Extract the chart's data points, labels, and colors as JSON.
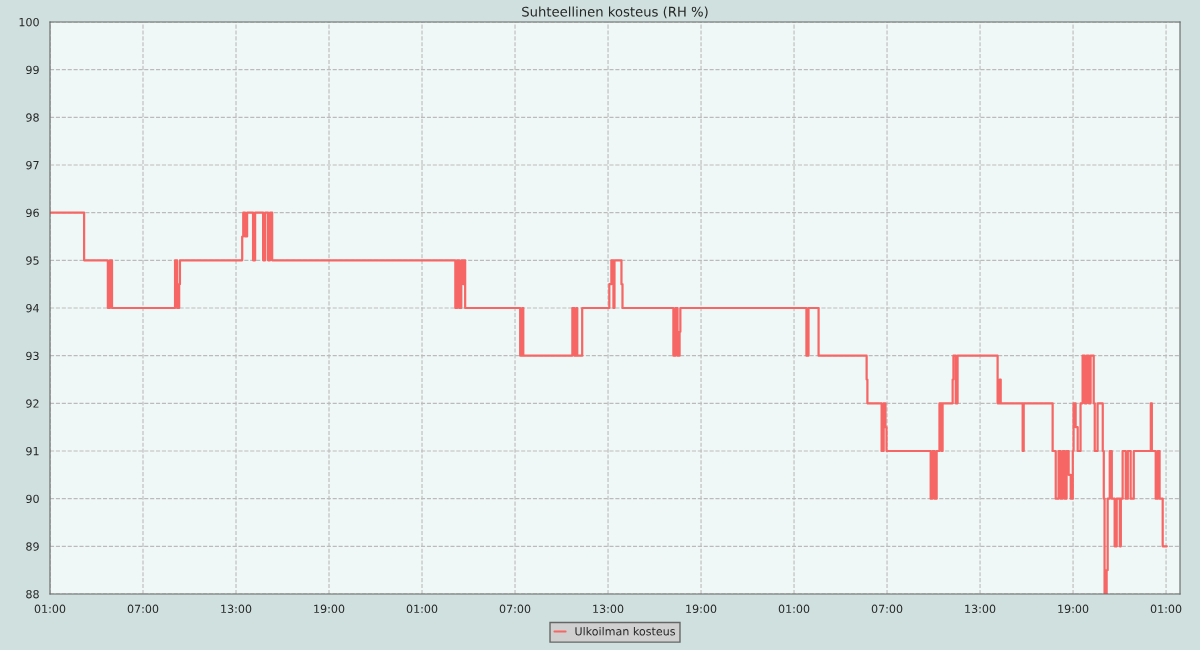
{
  "chart_data": {
    "type": "step",
    "title": "Suhteellinen kosteus (RH %)",
    "xlim": [
      "2000-01-01T01:00",
      "2000-01-04T01:54"
    ],
    "ylim": [
      88,
      100
    ],
    "yticks": [
      88,
      89,
      90,
      91,
      92,
      93,
      94,
      95,
      96,
      97,
      98,
      99,
      100
    ],
    "xticks": [
      {
        "value": "2000-01-01T01:00",
        "label": "01:00"
      },
      {
        "value": "2000-01-01T07:00",
        "label": "07:00"
      },
      {
        "value": "2000-01-01T13:00",
        "label": "13:00"
      },
      {
        "value": "2000-01-01T19:00",
        "label": "19:00"
      },
      {
        "value": "2000-01-02T01:00",
        "label": "01:00"
      },
      {
        "value": "2000-01-02T07:00",
        "label": "07:00"
      },
      {
        "value": "2000-01-02T13:00",
        "label": "13:00"
      },
      {
        "value": "2000-01-02T19:00",
        "label": "19:00"
      },
      {
        "value": "2000-01-03T01:00",
        "label": "01:00"
      },
      {
        "value": "2000-01-03T07:00",
        "label": "07:00"
      },
      {
        "value": "2000-01-03T13:00",
        "label": "13:00"
      },
      {
        "value": "2000-01-03T19:00",
        "label": "19:00"
      },
      {
        "value": "2000-01-04T01:00",
        "label": "01:00"
      }
    ],
    "grid": true,
    "legend": "bottom",
    "line_style": "solid",
    "marker": "none",
    "series": [
      {
        "name": "Ulkoilman kosteus",
        "color": "#f56664",
        "x": [
          "2000-01-01T01:00",
          "2000-01-01T03:12",
          "2000-01-01T04:44",
          "2000-01-01T04:52",
          "2000-01-01T05:00",
          "2000-01-01T05:08",
          "2000-01-01T09:04",
          "2000-01-01T09:12",
          "2000-01-01T09:20",
          "2000-01-01T09:23",
          "2000-01-01T13:24",
          "2000-01-01T13:28",
          "2000-01-01T13:35",
          "2000-01-01T13:43",
          "2000-01-01T14:06",
          "2000-01-01T14:14",
          "2000-01-01T14:45",
          "2000-01-01T14:53",
          "2000-01-01T15:04",
          "2000-01-01T15:12",
          "2000-01-01T15:20",
          "2000-01-02T03:09",
          "2000-01-02T03:16",
          "2000-01-02T03:24",
          "2000-01-02T03:32",
          "2000-01-02T03:40",
          "2000-01-02T03:44",
          "2000-01-02T03:47",
          "2000-01-02T07:20",
          "2000-01-02T07:28",
          "2000-01-02T07:32",
          "2000-01-02T10:42",
          "2000-01-02T10:50",
          "2000-01-02T10:58",
          "2000-01-02T11:01",
          "2000-01-02T11:20",
          "2000-01-02T13:05",
          "2000-01-02T13:13",
          "2000-01-02T13:21",
          "2000-01-02T13:25",
          "2000-01-02T13:52",
          "2000-01-02T13:56",
          "2000-01-02T17:13",
          "2000-01-02T17:21",
          "2000-01-02T17:29",
          "2000-01-02T17:37",
          "2000-01-02T17:40",
          "2000-01-03T01:48",
          "2000-01-03T01:56",
          "2000-01-03T02:35",
          "2000-01-03T05:41",
          "2000-01-03T05:44",
          "2000-01-03T06:39",
          "2000-01-03T06:47",
          "2000-01-03T06:54",
          "2000-01-03T06:58",
          "2000-01-03T09:49",
          "2000-01-03T09:56",
          "2000-01-03T10:04",
          "2000-01-03T10:12",
          "2000-01-03T10:23",
          "2000-01-03T10:31",
          "2000-01-03T10:35",
          "2000-01-03T11:14",
          "2000-01-03T11:17",
          "2000-01-03T11:26",
          "2000-01-03T11:33",
          "2000-01-03T14:08",
          "2000-01-03T14:16",
          "2000-01-03T14:20",
          "2000-01-03T15:45",
          "2000-01-03T15:49",
          "2000-01-03T17:41",
          "2000-01-03T17:53",
          "2000-01-03T18:04",
          "2000-01-03T18:12",
          "2000-01-03T18:20",
          "2000-01-03T18:28",
          "2000-01-03T18:35",
          "2000-01-03T18:43",
          "2000-01-03T18:51",
          "2000-01-03T18:59",
          "2000-01-03T19:02",
          "2000-01-03T19:10",
          "2000-01-03T19:18",
          "2000-01-03T19:29",
          "2000-01-03T19:37",
          "2000-01-03T19:45",
          "2000-01-03T19:53",
          "2000-01-03T20:01",
          "2000-01-03T20:08",
          "2000-01-03T20:20",
          "2000-01-03T20:24",
          "2000-01-03T20:35",
          "2000-01-03T20:55",
          "2000-01-03T20:59",
          "2000-01-03T21:02",
          "2000-01-03T21:10",
          "2000-01-03T21:14",
          "2000-01-03T21:22",
          "2000-01-03T21:30",
          "2000-01-03T21:41",
          "2000-01-03T21:49",
          "2000-01-03T22:01",
          "2000-01-03T22:05",
          "2000-01-03T22:12",
          "2000-01-03T22:24",
          "2000-01-03T22:32",
          "2000-01-03T22:43",
          "2000-01-03T22:55",
          "2000-01-04T00:01",
          "2000-01-04T00:05",
          "2000-01-04T00:20",
          "2000-01-04T00:28",
          "2000-01-04T00:35",
          "2000-01-04T00:47",
          "2000-01-04T01:03"
        ],
        "values": [
          96,
          95,
          94,
          95,
          94,
          94,
          95,
          94,
          94.5,
          95,
          95.5,
          96,
          95.5,
          96,
          95,
          96,
          95,
          96,
          95,
          96,
          95,
          94,
          95,
          94,
          95,
          94.5,
          95,
          94,
          93,
          94,
          93,
          94,
          93,
          94,
          93,
          94,
          94.5,
          95,
          94,
          95,
          94.5,
          94,
          93,
          94,
          93,
          93.5,
          94,
          93,
          94,
          93,
          92.5,
          92,
          91,
          92,
          91.5,
          91,
          90,
          91,
          90,
          91,
          92,
          91,
          92,
          92.5,
          93,
          92,
          93,
          92,
          92.5,
          92,
          91,
          92,
          91,
          90,
          91,
          90,
          91,
          90,
          91,
          90.5,
          90,
          91,
          92,
          91.5,
          91,
          92,
          93,
          92,
          93,
          92,
          93,
          92,
          91,
          92,
          91,
          90,
          88,
          88.5,
          90,
          91,
          90,
          89,
          90,
          89,
          90,
          91,
          90,
          91,
          90,
          91,
          92,
          91,
          90,
          91,
          90,
          89,
          89
        ]
      }
    ]
  }
}
